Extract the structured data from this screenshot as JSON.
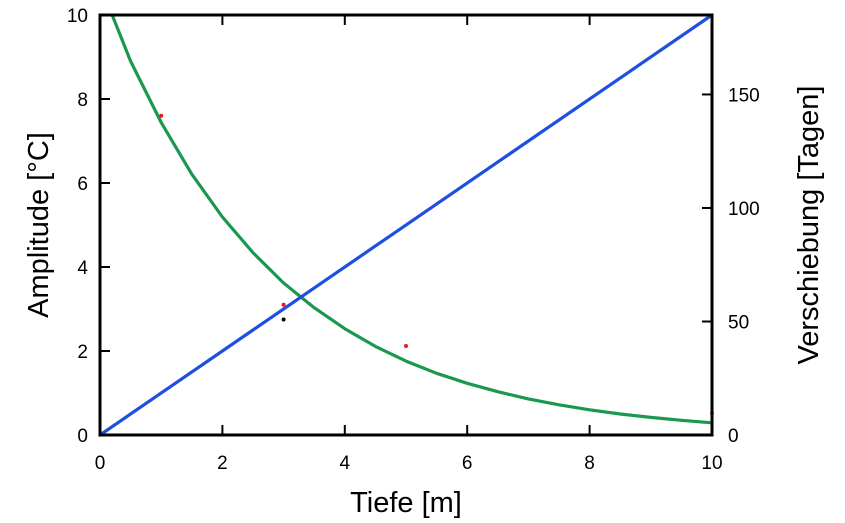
{
  "chart_data": {
    "type": "line",
    "title": "",
    "xlabel": "Tiefe [m]",
    "ylabel": "Amplitude [°C]",
    "y2label": "Verschiebung [Tagen]",
    "xlim": [
      0,
      10
    ],
    "ylim": [
      0,
      10
    ],
    "y2lim": [
      0,
      185
    ],
    "x_ticks": [
      0,
      2,
      4,
      6,
      8,
      10
    ],
    "y_ticks": [
      0,
      2,
      4,
      6,
      8,
      10
    ],
    "y2_ticks": [
      0,
      50,
      100,
      150
    ],
    "grid": false,
    "legend": "none",
    "series": [
      {
        "axis": "left",
        "style": "line",
        "color": "#1a9850",
        "x": [
          0.2,
          0.5,
          1,
          1.5,
          2,
          2.5,
          3,
          3.5,
          4,
          4.5,
          5,
          5.5,
          6,
          6.5,
          7,
          7.5,
          8,
          8.5,
          9,
          9.5,
          10
        ],
        "y": [
          10.0,
          8.9,
          7.44,
          6.21,
          5.19,
          4.34,
          3.62,
          3.03,
          2.53,
          2.11,
          1.76,
          1.47,
          1.23,
          1.03,
          0.86,
          0.72,
          0.6,
          0.5,
          0.42,
          0.35,
          0.29
        ]
      },
      {
        "axis": "right",
        "style": "line",
        "color": "#1f4fe0",
        "x": [
          0,
          10
        ],
        "y": [
          0,
          185
        ]
      },
      {
        "axis": "left",
        "style": "points",
        "color": "#e41a1c",
        "x": [
          1,
          3,
          5,
          10
        ],
        "y": [
          7.6,
          3.1,
          2.12,
          0.52
        ]
      },
      {
        "axis": "left",
        "style": "points",
        "color": "#000000",
        "x": [
          3
        ],
        "y": [
          2.75
        ]
      }
    ]
  }
}
